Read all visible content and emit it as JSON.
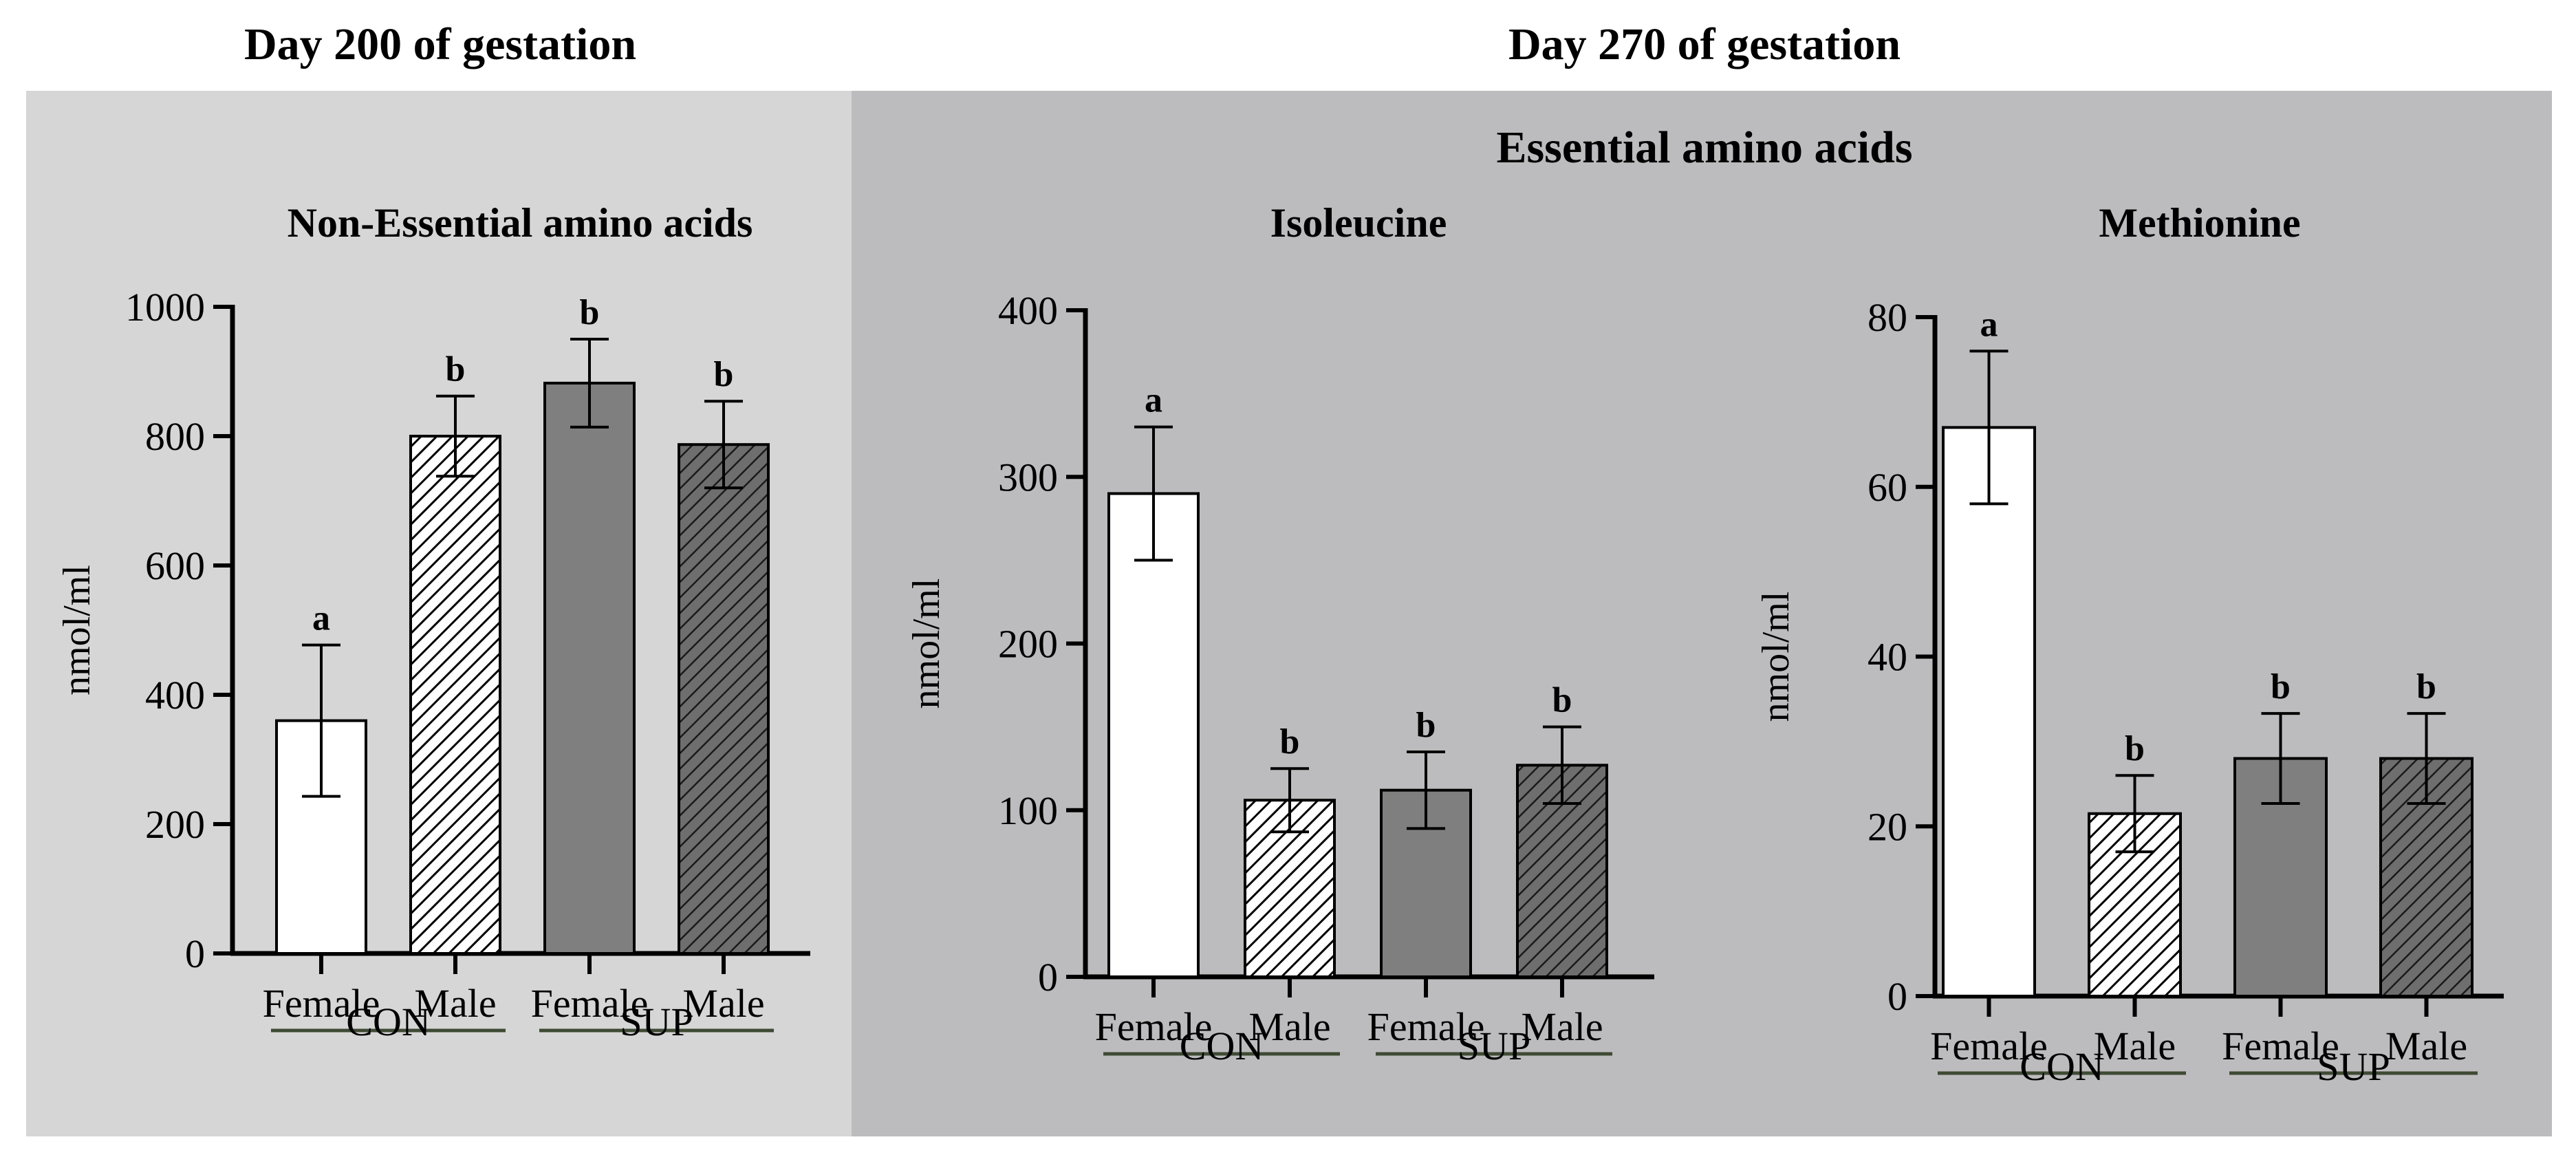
{
  "headers": {
    "left": "Day 200 of gestation",
    "right": "Day 270 of gestation",
    "essential": "Essential amino acids"
  },
  "group_labels": [
    "CON",
    "SUP"
  ],
  "colors": {
    "panel_left_bg": "#d6d6d6",
    "panel_right_bg": "#bcbcbe",
    "con_female": "#ffffff",
    "con_male": "#ffffff",
    "sup_female": "#7f7f7f",
    "sup_male": "#6e6e6e",
    "group_underline": "#3e4a33"
  },
  "chart_data": [
    {
      "type": "bar",
      "title": "Non-Essential amino acids",
      "ylabel": "nmol/ml",
      "xlabel": "",
      "ylim": [
        0,
        1000
      ],
      "yticks": [
        0,
        200,
        400,
        600,
        800,
        1000
      ],
      "categories": [
        "Female",
        "Male",
        "Female",
        "Male"
      ],
      "groups": [
        "CON",
        "CON",
        "SUP",
        "SUP"
      ],
      "values": [
        360,
        800,
        882,
        787
      ],
      "errors": [
        117,
        62,
        68,
        67
      ],
      "significance": [
        "a",
        "b",
        "b",
        "b"
      ]
    },
    {
      "type": "bar",
      "title": "Isoleucine",
      "ylabel": "nmol/ml",
      "xlabel": "",
      "ylim": [
        0,
        400
      ],
      "yticks": [
        0,
        100,
        200,
        300,
        400
      ],
      "categories": [
        "Female",
        "Male",
        "Female",
        "Male"
      ],
      "groups": [
        "CON",
        "CON",
        "SUP",
        "SUP"
      ],
      "values": [
        290,
        106,
        112,
        127
      ],
      "errors": [
        40,
        19,
        23,
        23
      ],
      "significance": [
        "a",
        "b",
        "b",
        "b"
      ]
    },
    {
      "type": "bar",
      "title": "Methionine",
      "ylabel": "nmol/ml",
      "xlabel": "",
      "ylim": [
        0,
        80
      ],
      "yticks": [
        0,
        20,
        40,
        60,
        80
      ],
      "categories": [
        "Female",
        "Male",
        "Female",
        "Male"
      ],
      "groups": [
        "CON",
        "CON",
        "SUP",
        "SUP"
      ],
      "values": [
        67,
        21.5,
        28,
        28
      ],
      "errors": [
        9,
        4.5,
        5.3,
        5.3
      ],
      "significance": [
        "a",
        "b",
        "b",
        "b"
      ]
    }
  ]
}
